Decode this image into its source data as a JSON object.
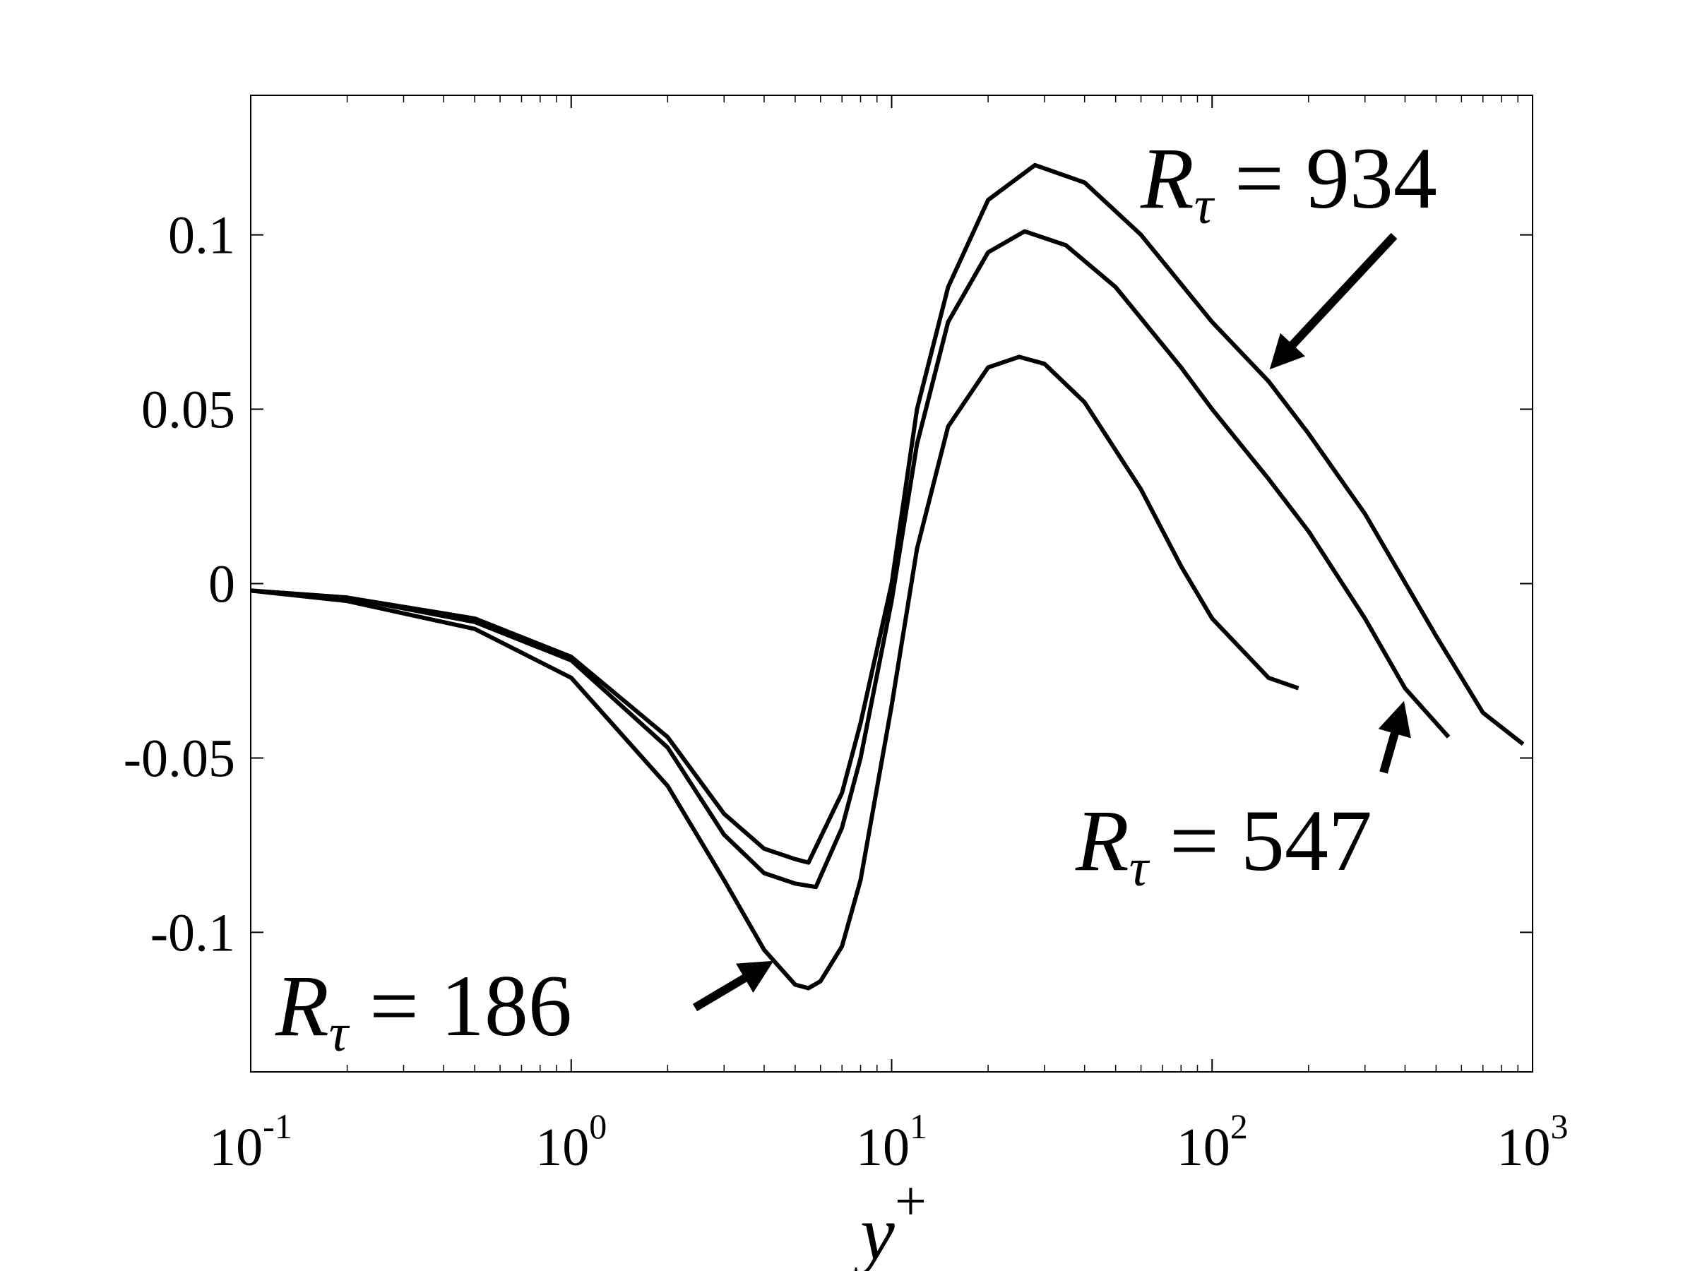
{
  "chart_data": {
    "type": "line",
    "x_label": {
      "text": "y",
      "sup": "+"
    },
    "xscale": "log",
    "xlim": [
      0.1,
      1000
    ],
    "ylim": [
      -0.14,
      0.14
    ],
    "xticks": [
      {
        "value": 0.1,
        "label": "10",
        "exponent": "-1"
      },
      {
        "value": 1,
        "label": "10",
        "exponent": "0"
      },
      {
        "value": 10,
        "label": "10",
        "exponent": "1"
      },
      {
        "value": 100,
        "label": "10",
        "exponent": "2"
      },
      {
        "value": 1000,
        "label": "10",
        "exponent": "3"
      }
    ],
    "yticks": [
      -0.1,
      -0.05,
      0,
      0.05,
      0.1
    ],
    "series": [
      {
        "color": "#000000",
        "x": [
          0.1,
          0.2,
          0.5,
          1,
          2,
          3,
          4,
          5,
          5.5,
          6,
          7,
          8,
          10,
          12,
          15,
          20,
          25,
          30,
          40,
          60,
          80,
          100,
          150,
          186
        ],
        "values": [
          -0.002,
          -0.005,
          -0.013,
          -0.027,
          -0.058,
          -0.085,
          -0.105,
          -0.115,
          -0.116,
          -0.114,
          -0.104,
          -0.085,
          -0.035,
          0.01,
          0.045,
          0.062,
          0.065,
          0.063,
          0.052,
          0.027,
          0.005,
          -0.01,
          -0.027,
          -0.03
        ]
      },
      {
        "color": "#000000",
        "x": [
          0.1,
          0.2,
          0.5,
          1,
          2,
          3,
          4,
          5,
          5.8,
          7,
          8,
          10,
          12,
          15,
          20,
          26,
          35,
          50,
          80,
          100,
          150,
          200,
          300,
          400,
          547
        ],
        "values": [
          -0.002,
          -0.004,
          -0.011,
          -0.022,
          -0.047,
          -0.072,
          -0.083,
          -0.086,
          -0.087,
          -0.07,
          -0.05,
          -0.005,
          0.04,
          0.075,
          0.095,
          0.101,
          0.097,
          0.085,
          0.062,
          0.05,
          0.03,
          0.015,
          -0.01,
          -0.03,
          -0.044
        ]
      },
      {
        "color": "#000000",
        "x": [
          0.1,
          0.2,
          0.5,
          1,
          2,
          3,
          4,
          5,
          5.5,
          7,
          8,
          10,
          12,
          15,
          20,
          28,
          40,
          60,
          100,
          150,
          200,
          300,
          500,
          700,
          934
        ],
        "values": [
          -0.002,
          -0.004,
          -0.01,
          -0.021,
          -0.044,
          -0.066,
          -0.076,
          -0.079,
          -0.08,
          -0.06,
          -0.04,
          0.0,
          0.05,
          0.085,
          0.11,
          0.12,
          0.115,
          0.1,
          0.075,
          0.058,
          0.043,
          0.02,
          -0.015,
          -0.037,
          -0.046
        ]
      }
    ],
    "annotations": [
      {
        "symbol": "R",
        "sub": "τ",
        "text": "= 934"
      },
      {
        "symbol": "R",
        "sub": "τ",
        "text": "= 547"
      },
      {
        "symbol": "R",
        "sub": "τ",
        "text": "= 186"
      }
    ]
  }
}
